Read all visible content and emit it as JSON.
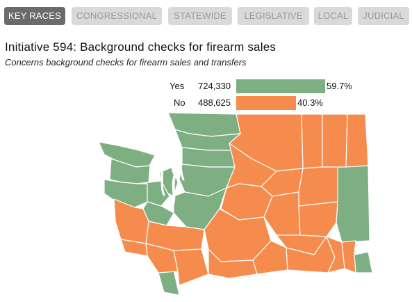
{
  "tabs": [
    {
      "label": "KEY RACES",
      "active": true
    },
    {
      "label": "CONGRESSIONAL",
      "active": false
    },
    {
      "label": "STATEWIDE",
      "active": false
    },
    {
      "label": "LEGISLATIVE",
      "active": false
    },
    {
      "label": "LOCAL",
      "active": false
    },
    {
      "label": "JUDICIAL",
      "active": false
    }
  ],
  "race": {
    "title": "Initiative 594: Background checks for firearm sales",
    "subtitle": "Concerns background checks for firearm sales and transfers"
  },
  "results": [
    {
      "label": "Yes",
      "votes": "724,330",
      "percent": "59.7%",
      "share": 0.597,
      "color": "#7daf82"
    },
    {
      "label": "No",
      "votes": "488,625",
      "percent": "40.3%",
      "share": 0.403,
      "color": "#f58b4c"
    }
  ],
  "colors": {
    "yes": "#7daf82",
    "no": "#f58b4c",
    "tab_active_bg": "#6b6b6b",
    "tab_bg": "#d9d9d9",
    "tab_text": "#9a9a9a"
  }
}
